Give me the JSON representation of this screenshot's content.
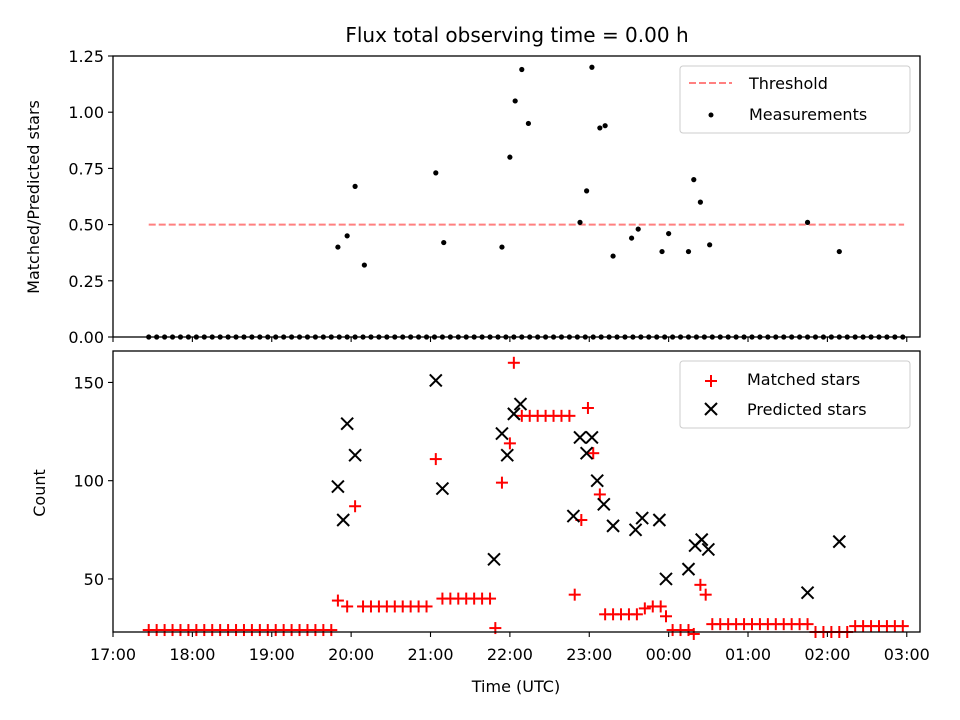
{
  "chart_data": [
    {
      "type": "scatter",
      "title": "Flux total observing time = 0.00 h",
      "xlabel": "",
      "ylabel": "Matched/Predicted stars",
      "xlim": [
        "17:00",
        "03:10"
      ],
      "ylim": [
        0,
        1.25
      ],
      "yticks": [
        "0.00",
        "0.25",
        "0.50",
        "0.75",
        "1.00",
        "1.25"
      ],
      "legend": {
        "placement": "top-right",
        "entries": [
          "Threshold",
          "Measurements"
        ]
      },
      "threshold": {
        "name": "Threshold",
        "value": 0.5,
        "x_start": "17:27",
        "x_end": "02:58",
        "color": "#ff8080",
        "style": "dashed"
      },
      "series": [
        {
          "name": "Measurements",
          "color": "#000000",
          "marker": "dot",
          "x": [
            "17:27",
            "17:33",
            "17:39",
            "17:45",
            "17:51",
            "17:57",
            "18:03",
            "18:09",
            "18:15",
            "18:21",
            "18:27",
            "18:33",
            "18:39",
            "18:45",
            "18:51",
            "18:57",
            "19:03",
            "19:09",
            "19:15",
            "19:21",
            "19:27",
            "19:33",
            "19:39",
            "19:45",
            "19:51",
            "19:57",
            "20:03",
            "20:09",
            "20:15",
            "20:21",
            "20:27",
            "20:33",
            "20:39",
            "20:45",
            "20:51",
            "20:57",
            "21:03",
            "21:09",
            "21:15",
            "21:21",
            "21:27",
            "21:33",
            "21:39",
            "21:45",
            "21:51",
            "21:57",
            "22:03",
            "22:09",
            "22:15",
            "22:21",
            "22:27",
            "22:33",
            "22:39",
            "22:45",
            "22:51",
            "22:57",
            "23:03",
            "23:09",
            "23:15",
            "23:21",
            "23:27",
            "23:33",
            "23:39",
            "23:45",
            "23:51",
            "23:57",
            "00:03",
            "00:09",
            "00:15",
            "00:21",
            "00:27",
            "00:33",
            "00:39",
            "00:45",
            "00:51",
            "00:57",
            "01:03",
            "01:09",
            "01:15",
            "01:21",
            "01:27",
            "01:33",
            "01:39",
            "01:45",
            "01:51",
            "01:57",
            "02:03",
            "02:09",
            "02:15",
            "02:21",
            "02:27",
            "02:33",
            "02:39",
            "02:45",
            "02:51",
            "02:57",
            "19:50",
            "19:57",
            "20:03",
            "20:10",
            "21:04",
            "21:10",
            "21:54",
            "22:00",
            "22:04",
            "22:09",
            "22:14",
            "22:53",
            "22:58",
            "23:02",
            "23:08",
            "23:12",
            "23:18",
            "23:32",
            "23:37",
            "23:55",
            "00:00",
            "00:15",
            "00:19",
            "00:24",
            "00:31",
            "01:45",
            "02:09"
          ],
          "y": [
            0,
            0,
            0,
            0,
            0,
            0,
            0,
            0,
            0,
            0,
            0,
            0,
            0,
            0,
            0,
            0,
            0,
            0,
            0,
            0,
            0,
            0,
            0,
            0,
            0,
            0,
            0,
            0,
            0,
            0,
            0,
            0,
            0,
            0,
            0,
            0,
            0,
            0,
            0,
            0,
            0,
            0,
            0,
            0,
            0,
            0,
            0,
            0,
            0,
            0,
            0,
            0,
            0,
            0,
            0,
            0,
            0,
            0,
            0,
            0,
            0,
            0,
            0,
            0,
            0,
            0,
            0,
            0,
            0,
            0,
            0,
            0,
            0,
            0,
            0,
            0,
            0,
            0,
            0,
            0,
            0,
            0,
            0,
            0,
            0,
            0,
            0,
            0,
            0,
            0,
            0,
            0,
            0,
            0,
            0,
            0,
            0.4,
            0.45,
            0.67,
            0.32,
            0.73,
            0.42,
            0.4,
            0.8,
            1.05,
            1.19,
            0.95,
            0.51,
            0.65,
            1.2,
            0.93,
            0.94,
            0.36,
            0.44,
            0.48,
            0.38,
            0.46,
            0.38,
            0.7,
            0.6,
            0.41,
            0.51,
            0.38
          ]
        }
      ]
    },
    {
      "type": "scatter",
      "title": "",
      "xlabel": "Time (UTC)",
      "ylabel": "Count",
      "xlim": [
        "17:00",
        "03:10"
      ],
      "ylim": [
        23,
        166
      ],
      "yticks": [
        "50",
        "100",
        "150"
      ],
      "xticks": [
        "17:00",
        "18:00",
        "19:00",
        "20:00",
        "21:00",
        "22:00",
        "23:00",
        "00:00",
        "01:00",
        "02:00",
        "03:00"
      ],
      "legend": {
        "placement": "top-right",
        "entries": [
          "Matched stars",
          "Predicted stars"
        ]
      },
      "series": [
        {
          "name": "Matched stars",
          "color": "#ff0000",
          "marker": "plus",
          "x": [
            "17:27",
            "17:33",
            "17:39",
            "17:45",
            "17:51",
            "17:57",
            "18:03",
            "18:09",
            "18:15",
            "18:21",
            "18:27",
            "18:33",
            "18:39",
            "18:45",
            "18:51",
            "18:57",
            "19:03",
            "19:09",
            "19:15",
            "19:21",
            "19:27",
            "19:33",
            "19:39",
            "19:45",
            "19:50",
            "19:57",
            "20:03",
            "20:09",
            "20:15",
            "20:21",
            "20:27",
            "20:33",
            "20:39",
            "20:45",
            "20:51",
            "20:57",
            "21:04",
            "21:09",
            "21:15",
            "21:21",
            "21:27",
            "21:33",
            "21:39",
            "21:45",
            "21:49",
            "21:54",
            "22:00",
            "22:03",
            "22:09",
            "22:15",
            "22:21",
            "22:27",
            "22:33",
            "22:39",
            "22:45",
            "22:49",
            "22:54",
            "22:59",
            "23:03",
            "23:08",
            "23:12",
            "23:18",
            "23:24",
            "23:30",
            "23:36",
            "23:42",
            "23:48",
            "23:54",
            "23:58",
            "00:03",
            "00:09",
            "00:15",
            "00:19",
            "00:24",
            "00:28",
            "00:33",
            "00:39",
            "00:45",
            "00:51",
            "00:57",
            "01:03",
            "01:09",
            "01:15",
            "01:21",
            "01:27",
            "01:33",
            "01:39",
            "01:45",
            "01:51",
            "01:57",
            "02:03",
            "02:09",
            "02:15",
            "02:21",
            "02:27",
            "02:33",
            "02:39",
            "02:45",
            "02:51",
            "02:57"
          ],
          "y": [
            24,
            24,
            24,
            24,
            24,
            24,
            24,
            24,
            24,
            24,
            24,
            24,
            24,
            24,
            24,
            24,
            24,
            24,
            24,
            24,
            24,
            24,
            24,
            24,
            39,
            36,
            87,
            36,
            36,
            36,
            36,
            36,
            36,
            36,
            36,
            36,
            111,
            40,
            40,
            40,
            40,
            40,
            40,
            40,
            25,
            99,
            119,
            160,
            133,
            133,
            133,
            133,
            133,
            133,
            133,
            42,
            80,
            137,
            114,
            93,
            32,
            32,
            32,
            32,
            32,
            35,
            36,
            36,
            31,
            24,
            24,
            24,
            22,
            47,
            42,
            27,
            27,
            27,
            27,
            27,
            27,
            27,
            27,
            27,
            27,
            27,
            27,
            27,
            23,
            23,
            23,
            23,
            23,
            26,
            26,
            26,
            26,
            26,
            26,
            26
          ]
        },
        {
          "name": "Predicted stars",
          "color": "#000000",
          "marker": "x",
          "x": [
            "19:50",
            "19:54",
            "19:57",
            "20:03",
            "21:04",
            "21:09",
            "21:48",
            "21:54",
            "21:58",
            "22:03",
            "22:08",
            "22:48",
            "22:53",
            "22:58",
            "23:02",
            "23:06",
            "23:11",
            "23:18",
            "23:35",
            "23:40",
            "23:53",
            "23:58",
            "00:15",
            "00:20",
            "00:25",
            "00:30",
            "01:45",
            "02:09"
          ],
          "y": [
            97,
            80,
            129,
            113,
            151,
            96,
            60,
            124,
            113,
            134,
            139,
            82,
            122,
            114,
            122,
            100,
            88,
            77,
            75,
            81,
            80,
            50,
            55,
            67,
            70,
            65,
            43,
            69
          ]
        }
      ]
    }
  ]
}
